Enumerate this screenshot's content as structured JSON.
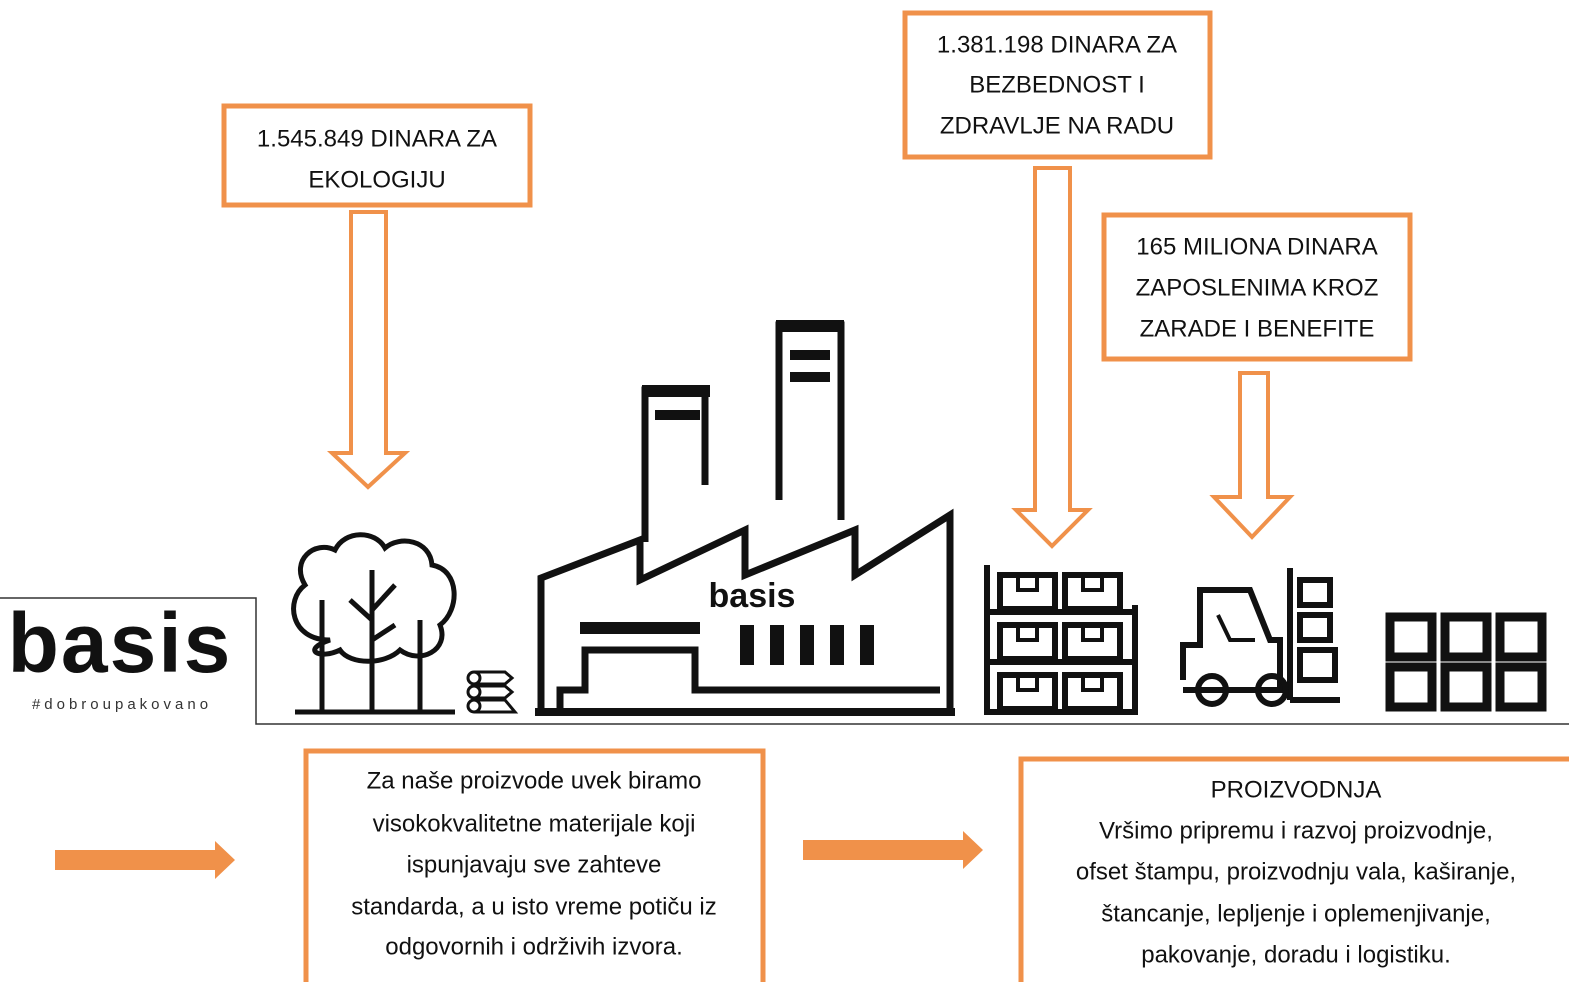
{
  "logo": {
    "name": "basis",
    "tagline": "#dobroupakovano"
  },
  "top_boxes": [
    {
      "lines": [
        "1.545.849 DINARA ZA",
        "EKOLOGIJU"
      ]
    },
    {
      "lines": [
        "1.381.198 DINARA ZA",
        "BEZBEDNOST I",
        "ZDRAVLJE NA RADU"
      ]
    },
    {
      "lines": [
        "165 MILIONA DINARA",
        "ZAPOSLENIMA KROZ",
        "ZARADE I BENEFITE"
      ]
    }
  ],
  "materials_box": {
    "lines": [
      "Za naše proizvode uvek biramo",
      "visokokvalitetne materijale koji",
      "ispunjavaju sve zahteve",
      "standarda, a u isto vreme potiču iz",
      "odgovornih i održivih izvora."
    ]
  },
  "production_box": {
    "title": "PROIZVODNJA",
    "lines": [
      "Vršimo pripremu i razvoj proizvodnje,",
      "ofset štampu, proizvodnju vala, kaširanje,",
      "štancanje, lepljenje i oplemenjivanje,",
      "pakovanje, doradu i logistiku."
    ]
  }
}
